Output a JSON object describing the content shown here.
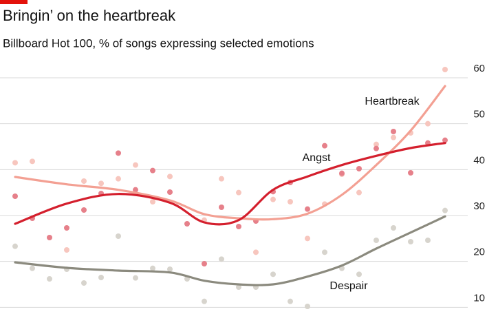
{
  "chart_data": {
    "type": "scatter-trend",
    "title": "Bringin’ on the heartbreak",
    "subtitle": "Billboard Hot 100, % of songs expressing selected emotions",
    "categories": [
      null,
      null,
      null,
      null,
      null,
      null,
      null,
      null,
      null,
      null,
      null,
      null,
      null,
      null,
      null,
      null,
      null,
      null,
      null,
      null,
      null,
      null,
      null,
      null,
      null,
      null
    ],
    "ylim": [
      6,
      63
    ],
    "yticks": [
      10,
      20,
      30,
      40,
      50,
      60
    ],
    "grid": true,
    "trend_x": [
      0,
      3,
      6,
      9,
      11,
      13,
      15,
      17,
      19,
      21,
      23,
      25
    ],
    "series": [
      {
        "name": "Heartbreak",
        "color": "#f3a093",
        "dot_color": "#f7c6be",
        "values": [
          41.5,
          41.8,
          null,
          22.5,
          37.5,
          37,
          38,
          41,
          33,
          38.5,
          null,
          29,
          38,
          35,
          22,
          33.5,
          33,
          25,
          32.5,
          39,
          35,
          45.5,
          47,
          48,
          50,
          61.8
        ],
        "trend": [
          38.4,
          36.8,
          35.6,
          33.3,
          30.3,
          29.4,
          29.2,
          30.4,
          34.5,
          41,
          48.5,
          58.2
        ]
      },
      {
        "name": "Angst",
        "color": "#d41f2d",
        "dot_color": "#e6808a",
        "values": [
          34.2,
          29.4,
          25.2,
          27.3,
          31.2,
          34.8,
          43.6,
          35.6,
          39.8,
          35.1,
          28.2,
          19.5,
          31.8,
          27.6,
          28.8,
          35.2,
          37.2,
          31.4,
          45.2,
          39.2,
          40.2,
          44.6,
          48.3,
          39.3,
          45.8,
          46.4
        ],
        "trend": [
          28.2,
          32.6,
          34.7,
          32.8,
          28.5,
          29,
          35.6,
          38.5,
          41,
          43,
          44.7,
          45.8
        ]
      },
      {
        "name": "Despair",
        "color": "#8b8a7e",
        "dot_color": "#d7d4cd",
        "values": [
          23.3,
          18.5,
          16.2,
          18.3,
          15.3,
          16.5,
          25.5,
          16.4,
          18.5,
          18.3,
          16.2,
          11.3,
          20.5,
          14.4,
          14.4,
          17.2,
          11.3,
          10.2,
          22,
          18.5,
          17.2,
          24.6,
          27.3,
          24.3,
          24.6,
          31.1
        ],
        "trend": [
          19.8,
          18.6,
          18,
          17.6,
          15.8,
          15,
          15,
          16.7,
          19.1,
          22.8,
          26.3,
          29.8
        ]
      }
    ]
  }
}
